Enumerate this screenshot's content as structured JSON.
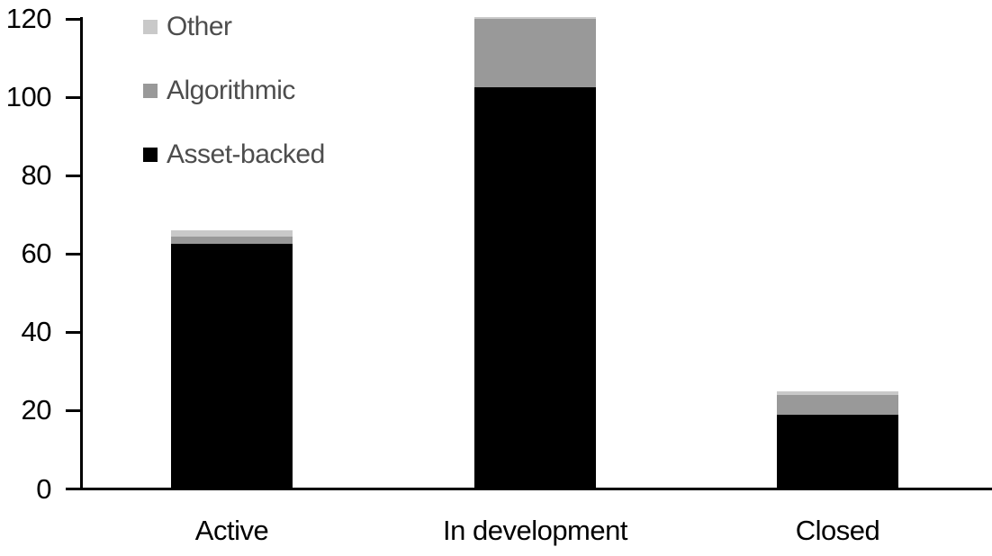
{
  "chart_data": {
    "type": "bar",
    "stacked": true,
    "title": "",
    "xlabel": "",
    "ylabel": "",
    "categories": [
      "Active",
      "In development",
      "Closed"
    ],
    "series": [
      {
        "name": "Other",
        "color": "#c9c9c9",
        "values": [
          1.5,
          0.5,
          1
        ]
      },
      {
        "name": "Algorithmic",
        "color": "#999999",
        "values": [
          2,
          17.5,
          5
        ]
      },
      {
        "name": "Asset-backed",
        "color": "#000000",
        "values": [
          62.5,
          102.5,
          19
        ]
      }
    ],
    "totals": [
      66,
      120.5,
      25
    ],
    "ylim": [
      0,
      120
    ],
    "yticks": [
      0,
      20,
      40,
      60,
      80,
      100,
      120
    ],
    "grid": false,
    "legend_position": "top-left"
  },
  "colors": {
    "background": "#ffffff",
    "axis": "#000000",
    "tick_label": "#000000",
    "category_label": "#000000",
    "legend_text": "#4d4d4d"
  }
}
